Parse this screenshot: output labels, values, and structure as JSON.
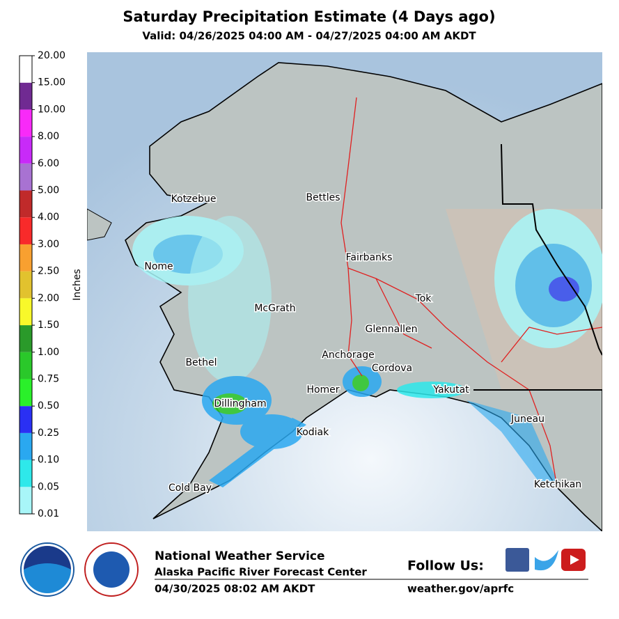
{
  "header": {
    "title": "Saturday Precipitation Estimate (4 Days ago)",
    "subtitle": "Valid: 04/26/2025 04:00 AM - 04/27/2025 04:00 AM AKDT"
  },
  "legend": {
    "label": "Inches",
    "ticks": [
      "0.01",
      "0.05",
      "0.10",
      "0.25",
      "0.50",
      "0.75",
      "1.00",
      "1.50",
      "2.00",
      "2.50",
      "3.00",
      "4.00",
      "5.00",
      "6.00",
      "8.00",
      "10.00",
      "15.00",
      "20.00"
    ],
    "colors": [
      "#a8f6f8",
      "#2ee8ea",
      "#2aa8f0",
      "#2a30f4",
      "#2af02a",
      "#2ac82a",
      "#2a9a2a",
      "#f8f82a",
      "#e2c22e",
      "#f8a030",
      "#f82a2a",
      "#c02a2a",
      "#a872d2",
      "#c82af8",
      "#f82af8",
      "#702a92",
      "#ffffff"
    ]
  },
  "map": {
    "places": [
      "Kotzebue",
      "Bettles",
      "Nome",
      "Fairbanks",
      "McGrath",
      "Tok",
      "Glennallen",
      "Bethel",
      "Anchorage",
      "Cordova",
      "Homer",
      "Dillingham",
      "Yakutat",
      "Juneau",
      "Kodiak",
      "Cold Bay",
      "Ketchikan"
    ]
  },
  "footer": {
    "agency": "National Weather Service",
    "office": "Alaska Pacific River Forecast Center",
    "timestamp": "04/30/2025 08:02 AM AKDT",
    "follow": "Follow Us:",
    "url": "weather.gov/aprfc"
  }
}
